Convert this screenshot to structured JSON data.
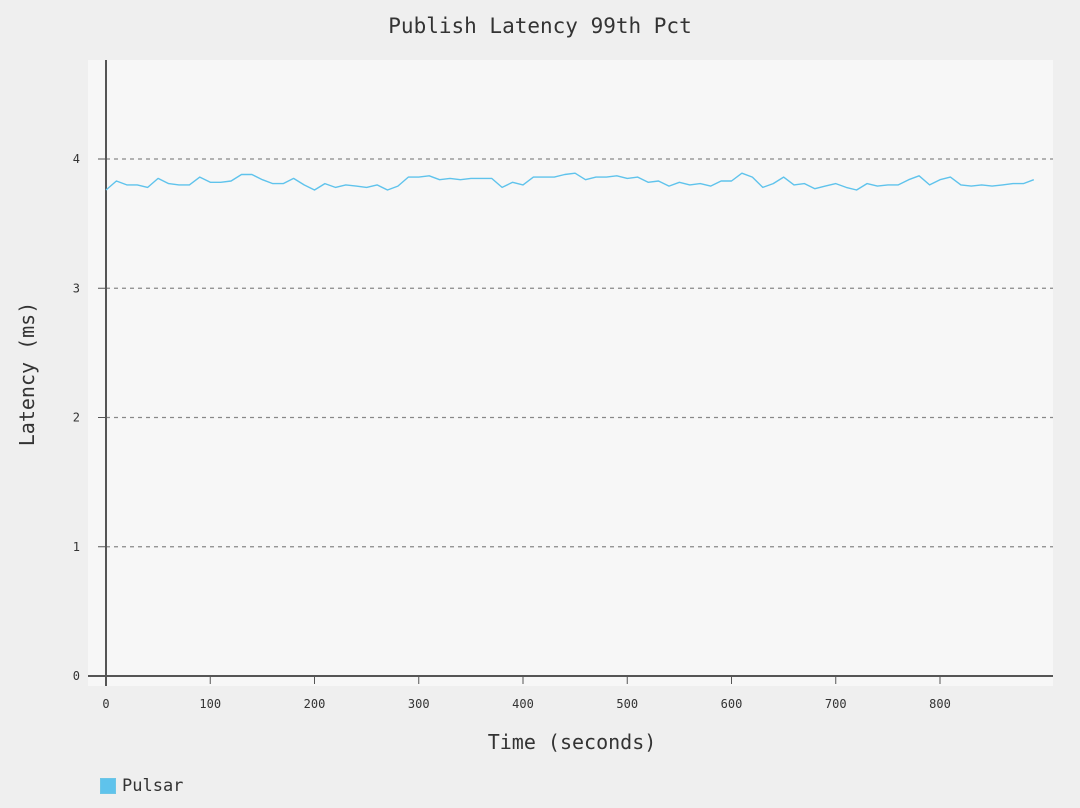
{
  "chart_data": {
    "type": "line",
    "title": "Publish Latency 99th Pct",
    "xlabel": "Time (seconds)",
    "ylabel": "Latency (ms)",
    "xlim": [
      0,
      910
    ],
    "ylim": [
      0,
      4.7
    ],
    "x_ticks": [
      0,
      100,
      200,
      300,
      400,
      500,
      600,
      700,
      800
    ],
    "y_ticks": [
      0,
      1,
      2,
      3,
      4
    ],
    "grid": "horizontal-dashed",
    "legend_position": "bottom-left",
    "series": [
      {
        "name": "Pulsar",
        "color": "#5fc3ec",
        "x": [
          0,
          10,
          20,
          30,
          40,
          50,
          60,
          70,
          80,
          90,
          100,
          110,
          120,
          130,
          140,
          150,
          160,
          170,
          180,
          190,
          200,
          210,
          220,
          230,
          240,
          250,
          260,
          270,
          280,
          290,
          300,
          310,
          320,
          330,
          340,
          350,
          360,
          370,
          380,
          390,
          400,
          410,
          420,
          430,
          440,
          450,
          460,
          470,
          480,
          490,
          500,
          510,
          520,
          530,
          540,
          550,
          560,
          570,
          580,
          590,
          600,
          610,
          620,
          630,
          640,
          650,
          660,
          670,
          680,
          690,
          700,
          710,
          720,
          730,
          740,
          750,
          760,
          770,
          780,
          790,
          800,
          810,
          820,
          830,
          840,
          850,
          860,
          870,
          880,
          890
        ],
        "y": [
          3.76,
          3.83,
          3.8,
          3.8,
          3.78,
          3.85,
          3.81,
          3.8,
          3.8,
          3.86,
          3.82,
          3.82,
          3.83,
          3.88,
          3.88,
          3.84,
          3.81,
          3.81,
          3.85,
          3.8,
          3.76,
          3.81,
          3.78,
          3.8,
          3.79,
          3.78,
          3.8,
          3.76,
          3.79,
          3.86,
          3.86,
          3.87,
          3.84,
          3.85,
          3.84,
          3.85,
          3.85,
          3.85,
          3.78,
          3.82,
          3.8,
          3.86,
          3.86,
          3.86,
          3.88,
          3.89,
          3.84,
          3.86,
          3.86,
          3.87,
          3.85,
          3.86,
          3.82,
          3.83,
          3.79,
          3.82,
          3.8,
          3.81,
          3.79,
          3.83,
          3.83,
          3.89,
          3.86,
          3.78,
          3.81,
          3.86,
          3.8,
          3.81,
          3.77,
          3.79,
          3.81,
          3.78,
          3.76,
          3.81,
          3.79,
          3.8,
          3.8,
          3.84,
          3.87,
          3.8,
          3.84,
          3.86,
          3.8,
          3.79,
          3.8,
          3.79,
          3.8,
          3.81,
          3.81,
          3.84
        ]
      }
    ]
  }
}
